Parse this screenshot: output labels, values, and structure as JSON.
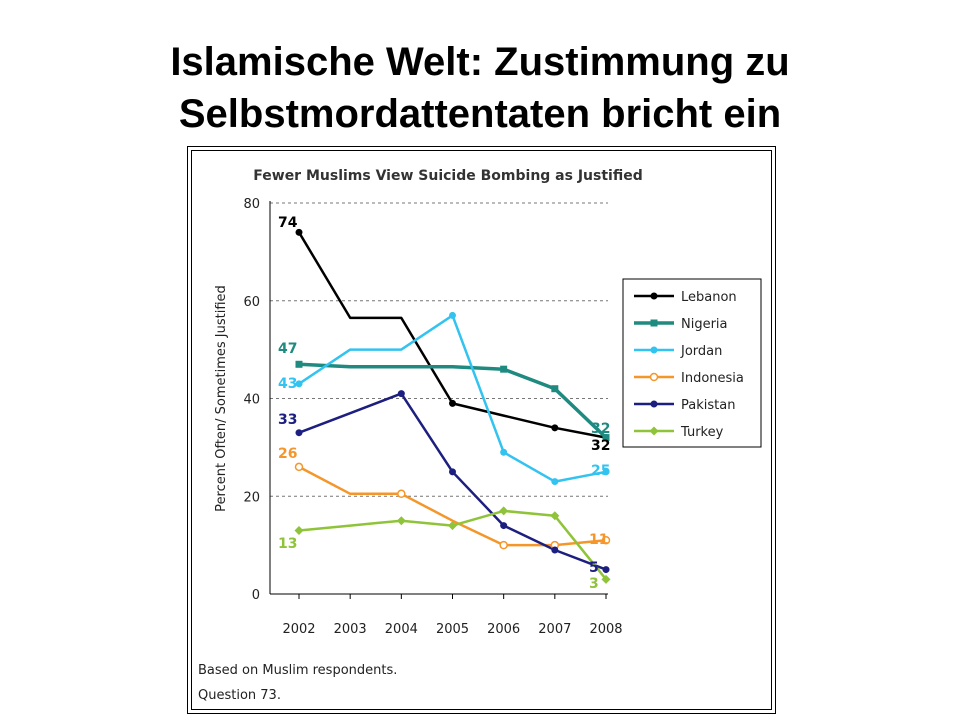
{
  "slide": {
    "title_line1": "Islamische Welt: Zustimmung zu",
    "title_line2": "Selbstmordattentaten bricht ein"
  },
  "chart_data": {
    "type": "line",
    "title": "Fewer Muslims View Suicide Bombing as Justified",
    "xlabel": "",
    "ylabel": "Percent Often/ Sometimes Justified",
    "x": [
      "2002",
      "2003",
      "2004",
      "2005",
      "2006",
      "2007",
      "2008"
    ],
    "yticks": [
      0,
      20,
      40,
      60,
      80
    ],
    "ylim": [
      0,
      80
    ],
    "grid": "dashed horizontal",
    "legend_position": "right",
    "series": [
      {
        "name": "Lebanon",
        "color": "#000000",
        "marker": "filled-circle",
        "values": [
          74,
          56.5,
          56.5,
          39,
          36.5,
          34,
          32
        ],
        "markers": [
          true,
          false,
          false,
          true,
          false,
          true,
          true
        ],
        "start_label": "74",
        "end_label": "32"
      },
      {
        "name": "Nigeria",
        "color": "#1f8a80",
        "marker": "filled-square",
        "values": [
          47,
          46.5,
          46.5,
          46.5,
          46,
          42,
          32
        ],
        "markers": [
          true,
          false,
          false,
          false,
          true,
          true,
          true
        ],
        "start_label": "47",
        "end_label": "32"
      },
      {
        "name": "Jordan",
        "color": "#33c3f0",
        "marker": "filled-circle",
        "values": [
          43,
          50,
          50,
          57,
          29,
          23,
          25
        ],
        "markers": [
          true,
          false,
          false,
          true,
          true,
          true,
          true
        ],
        "start_label": "43",
        "end_label": "25"
      },
      {
        "name": "Indonesia",
        "color": "#f5962a",
        "marker": "open-circle",
        "values": [
          26,
          20.5,
          20.5,
          15,
          10,
          10,
          11
        ],
        "markers": [
          true,
          false,
          true,
          false,
          true,
          true,
          true
        ],
        "start_label": "26",
        "end_label": "11"
      },
      {
        "name": "Pakistan",
        "color": "#1d1f80",
        "marker": "filled-circle",
        "values": [
          33,
          37,
          41,
          25,
          14,
          9,
          5
        ],
        "markers": [
          true,
          false,
          true,
          true,
          true,
          true,
          true
        ],
        "start_label": "33",
        "end_label": "5"
      },
      {
        "name": "Turkey",
        "color": "#8fc43a",
        "marker": "filled-diamond",
        "values": [
          13,
          14,
          15,
          14,
          17,
          16,
          3
        ],
        "markers": [
          true,
          false,
          true,
          true,
          true,
          true,
          true
        ],
        "start_label": "13",
        "end_label": "3"
      }
    ],
    "notes": [
      "Based on Muslim respondents.",
      "Question 73."
    ]
  }
}
